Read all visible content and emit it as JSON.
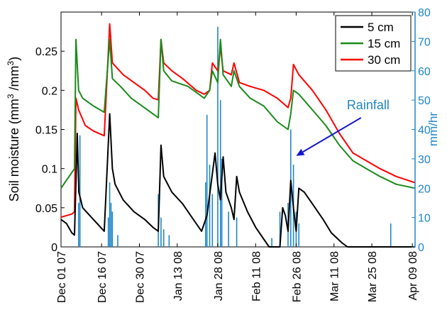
{
  "chart_data": {
    "type": "line",
    "ylabel": "Soil moisture (mm",
    "ylabel_sup1": "3",
    "ylabel_mid": " /mm",
    "ylabel_sup2": "3",
    "ylabel_end": ")",
    "y2label": "mm/hr",
    "ylim": [
      0,
      0.3
    ],
    "y2lim": [
      0,
      80
    ],
    "yticks": [
      "0",
      "0.05",
      "0.1",
      "0.15",
      "0.2",
      "0.25"
    ],
    "y2ticks": [
      "0",
      "10",
      "20",
      "30",
      "40",
      "50",
      "60",
      "70",
      "80"
    ],
    "xlim": [
      0,
      131
    ],
    "xticks": [
      {
        "label": "Dec 01 07",
        "day": 0
      },
      {
        "label": "Dec 16 07",
        "day": 15
      },
      {
        "label": "Dec 30 07",
        "day": 29
      },
      {
        "label": "Jan 13 08",
        "day": 43
      },
      {
        "label": "Jan 28 08",
        "day": 58
      },
      {
        "label": "Feb 11 08",
        "day": 72
      },
      {
        "label": "Feb 26 08",
        "day": 87
      },
      {
        "label": "Mar 11 08",
        "day": 101
      },
      {
        "label": "Mar 25 08",
        "day": 115
      },
      {
        "label": "Apr 09 08",
        "day": 130
      }
    ],
    "legend_position": "top-right",
    "series": [
      {
        "name": "5 cm",
        "color": "#000000",
        "points": [
          [
            0,
            0.035
          ],
          [
            2,
            0.03
          ],
          [
            4,
            0.018
          ],
          [
            5,
            0.015
          ],
          [
            6,
            0.145
          ],
          [
            6.6,
            0.07
          ],
          [
            8,
            0.05
          ],
          [
            12,
            0.035
          ],
          [
            16,
            0.02
          ],
          [
            18,
            0.17
          ],
          [
            19,
            0.1
          ],
          [
            20,
            0.08
          ],
          [
            23,
            0.06
          ],
          [
            27,
            0.045
          ],
          [
            31,
            0.035
          ],
          [
            34,
            0.025
          ],
          [
            36,
            0.02
          ],
          [
            37,
            0.13
          ],
          [
            38,
            0.09
          ],
          [
            41,
            0.07
          ],
          [
            45,
            0.055
          ],
          [
            49,
            0.035
          ],
          [
            52,
            0.02
          ],
          [
            53,
            0.03
          ],
          [
            54,
            0.04
          ],
          [
            57,
            0.12
          ],
          [
            58,
            0.08
          ],
          [
            59,
            0.06
          ],
          [
            60,
            0.115
          ],
          [
            61,
            0.07
          ],
          [
            63,
            0.05
          ],
          [
            64,
            0.035
          ],
          [
            65,
            0.09
          ],
          [
            66,
            0.07
          ],
          [
            69,
            0.045
          ],
          [
            72,
            0.025
          ],
          [
            75,
            0.01
          ],
          [
            77,
            0
          ],
          [
            81,
            0
          ],
          [
            82,
            0.05
          ],
          [
            83,
            0.04
          ],
          [
            84,
            0.02
          ],
          [
            85,
            0.085
          ],
          [
            86,
            0.05
          ],
          [
            87,
            0.02
          ],
          [
            88,
            0.075
          ],
          [
            90,
            0.07
          ],
          [
            93,
            0.055
          ],
          [
            97,
            0.035
          ],
          [
            100,
            0.018
          ],
          [
            104,
            0.005
          ],
          [
            106,
            0
          ],
          [
            131,
            0
          ]
        ]
      },
      {
        "name": "15 cm",
        "color": "#1a8a1a",
        "points": [
          [
            0,
            0.075
          ],
          [
            2,
            0.085
          ],
          [
            4,
            0.095
          ],
          [
            5,
            0.1
          ],
          [
            5.5,
            0.265
          ],
          [
            6.5,
            0.2
          ],
          [
            8,
            0.19
          ],
          [
            12,
            0.18
          ],
          [
            16,
            0.172
          ],
          [
            18,
            0.265
          ],
          [
            19,
            0.215
          ],
          [
            22,
            0.205
          ],
          [
            26,
            0.19
          ],
          [
            30,
            0.18
          ],
          [
            34,
            0.17
          ],
          [
            36,
            0.165
          ],
          [
            37,
            0.265
          ],
          [
            38,
            0.225
          ],
          [
            41,
            0.212
          ],
          [
            47,
            0.205
          ],
          [
            53,
            0.19
          ],
          [
            55,
            0.2
          ],
          [
            56,
            0.225
          ],
          [
            58,
            0.21
          ],
          [
            59,
            0.265
          ],
          [
            60,
            0.22
          ],
          [
            63,
            0.205
          ],
          [
            64,
            0.225
          ],
          [
            66,
            0.205
          ],
          [
            70,
            0.19
          ],
          [
            75,
            0.18
          ],
          [
            80,
            0.16
          ],
          [
            84,
            0.15
          ],
          [
            85,
            0.17
          ],
          [
            86,
            0.2
          ],
          [
            88,
            0.195
          ],
          [
            93,
            0.175
          ],
          [
            98,
            0.155
          ],
          [
            103,
            0.13
          ],
          [
            108,
            0.11
          ],
          [
            113,
            0.1
          ],
          [
            118,
            0.09
          ],
          [
            124,
            0.08
          ],
          [
            131,
            0.075
          ]
        ]
      },
      {
        "name": "30 cm",
        "color": "#ff0000",
        "points": [
          [
            0,
            0.038
          ],
          [
            2,
            0.04
          ],
          [
            4,
            0.042
          ],
          [
            5,
            0.045
          ],
          [
            5.5,
            0.19
          ],
          [
            6.5,
            0.175
          ],
          [
            9,
            0.155
          ],
          [
            12,
            0.148
          ],
          [
            16,
            0.142
          ],
          [
            18,
            0.285
          ],
          [
            19,
            0.235
          ],
          [
            23,
            0.22
          ],
          [
            27,
            0.21
          ],
          [
            31,
            0.2
          ],
          [
            34,
            0.19
          ],
          [
            36,
            0.188
          ],
          [
            37,
            0.265
          ],
          [
            38,
            0.235
          ],
          [
            41,
            0.225
          ],
          [
            45,
            0.215
          ],
          [
            50,
            0.2
          ],
          [
            53,
            0.195
          ],
          [
            55,
            0.2
          ],
          [
            56,
            0.235
          ],
          [
            58,
            0.225
          ],
          [
            59,
            0.255
          ],
          [
            60,
            0.225
          ],
          [
            63,
            0.22
          ],
          [
            64,
            0.235
          ],
          [
            66,
            0.21
          ],
          [
            70,
            0.205
          ],
          [
            75,
            0.2
          ],
          [
            80,
            0.19
          ],
          [
            84,
            0.178
          ],
          [
            85,
            0.19
          ],
          [
            86,
            0.233
          ],
          [
            88,
            0.22
          ],
          [
            93,
            0.2
          ],
          [
            98,
            0.175
          ],
          [
            103,
            0.145
          ],
          [
            108,
            0.12
          ],
          [
            113,
            0.11
          ],
          [
            118,
            0.1
          ],
          [
            124,
            0.09
          ],
          [
            131,
            0.082
          ]
        ]
      }
    ],
    "rainfall": {
      "name": "Rainfall",
      "color": "#1f86c8",
      "bars": [
        [
          6.5,
          15
        ],
        [
          7,
          38
        ],
        [
          17.5,
          10
        ],
        [
          18,
          22
        ],
        [
          18.5,
          15
        ],
        [
          19,
          12
        ],
        [
          21,
          4
        ],
        [
          36,
          18
        ],
        [
          37,
          10
        ],
        [
          38,
          6
        ],
        [
          40,
          4
        ],
        [
          53.5,
          22
        ],
        [
          54,
          45
        ],
        [
          55,
          28
        ],
        [
          56,
          18
        ],
        [
          58,
          75
        ],
        [
          59,
          50
        ],
        [
          59.5,
          30
        ],
        [
          62,
          12
        ],
        [
          65,
          10
        ],
        [
          78,
          3
        ],
        [
          81,
          12
        ],
        [
          84,
          15
        ],
        [
          85,
          40
        ],
        [
          86,
          28
        ],
        [
          87,
          12
        ],
        [
          88,
          8
        ],
        [
          122,
          8
        ]
      ]
    },
    "annotation": {
      "text": "Rainfall",
      "arrow_from_day": 111,
      "arrow_from_y2": 44,
      "arrow_to_day": 87,
      "arrow_to_y2": 31
    }
  }
}
